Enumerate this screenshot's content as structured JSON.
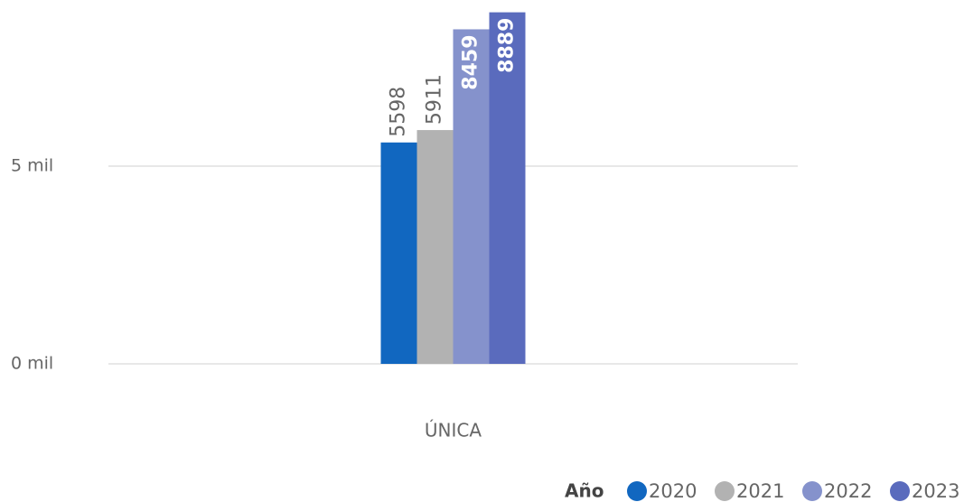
{
  "chart_data": {
    "type": "bar",
    "categories": [
      "ÚNICA"
    ],
    "series": [
      {
        "name": "2020",
        "color": "#1167c0",
        "values": [
          5598
        ]
      },
      {
        "name": "2021",
        "color": "#b2b2b2",
        "values": [
          5911
        ]
      },
      {
        "name": "2022",
        "color": "#8592cc",
        "values": [
          8459
        ]
      },
      {
        "name": "2023",
        "color": "#5a6bbd",
        "values": [
          8889
        ]
      }
    ],
    "ylim": [
      0,
      9200
    ],
    "yticks": [
      {
        "value": 0,
        "label": "0 mil"
      },
      {
        "value": 5000,
        "label": "5 mil"
      }
    ],
    "grid": true,
    "legend_title": "Año",
    "legend": "bottom-right"
  }
}
